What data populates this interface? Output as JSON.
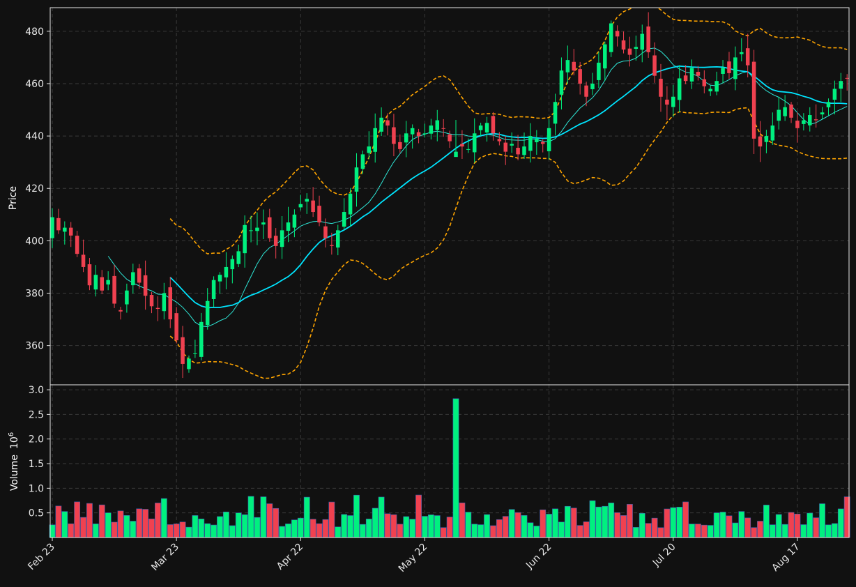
{
  "chart_data": {
    "type": "candlestick",
    "grid": true,
    "colors": {
      "background": "#111111",
      "up": "#00f07f",
      "down": "#f04150",
      "ma_fast": "#2ee6d6",
      "ma_slow": "#00e5ff",
      "bollinger": "#ffa500",
      "grid": "#3a3a3a",
      "frame": "#e6e6e6"
    },
    "price_panel": {
      "ylabel": "Price",
      "ylim": [
        345,
        489
      ],
      "yticks": [
        360,
        380,
        400,
        420,
        440,
        460,
        480
      ]
    },
    "volume_panel": {
      "ylabel": "Volume",
      "exponent_label": "10",
      "exponent": "6",
      "ylim": [
        0,
        3.1
      ],
      "yticks": [
        "0.5",
        "1.0",
        "1.5",
        "2.0",
        "2.5",
        "3.0"
      ]
    },
    "x_ticks": [
      {
        "label": "Feb 23",
        "index": 0
      },
      {
        "label": "Mar 23",
        "index": 20
      },
      {
        "label": "Apr 22",
        "index": 40
      },
      {
        "label": "May 22",
        "index": 60
      },
      {
        "label": "Jun 22",
        "index": 80
      },
      {
        "label": "Jul 20",
        "index": 100
      },
      {
        "label": "Aug 17",
        "index": 120
      }
    ],
    "closes": [
      409,
      404,
      405,
      402,
      395,
      390,
      383,
      387,
      381,
      385,
      376,
      373,
      381,
      388,
      384,
      379,
      375,
      374,
      380,
      370,
      362,
      353,
      355,
      357,
      369,
      377,
      385,
      387,
      390,
      393,
      396,
      406,
      404,
      405,
      407,
      401,
      398,
      404,
      407,
      410,
      414,
      416,
      411,
      407,
      401,
      398,
      404,
      411,
      418,
      428,
      433,
      436,
      443,
      447,
      444,
      437,
      435,
      441,
      443,
      440,
      441,
      444,
      446,
      443,
      438,
      434,
      436,
      435,
      441,
      444,
      445,
      441,
      438,
      434,
      437,
      433,
      436,
      440,
      439,
      437,
      443,
      453,
      465,
      469,
      465,
      460,
      455,
      460,
      468,
      475,
      483,
      478,
      473,
      471,
      474,
      479,
      472,
      463,
      455,
      452,
      455,
      462,
      461,
      466,
      463,
      459,
      458,
      461,
      466,
      464,
      470,
      472,
      467,
      439,
      436,
      440,
      444,
      450,
      451,
      447,
      443,
      446,
      448,
      446,
      449,
      453,
      458,
      461,
      462
    ]
  }
}
